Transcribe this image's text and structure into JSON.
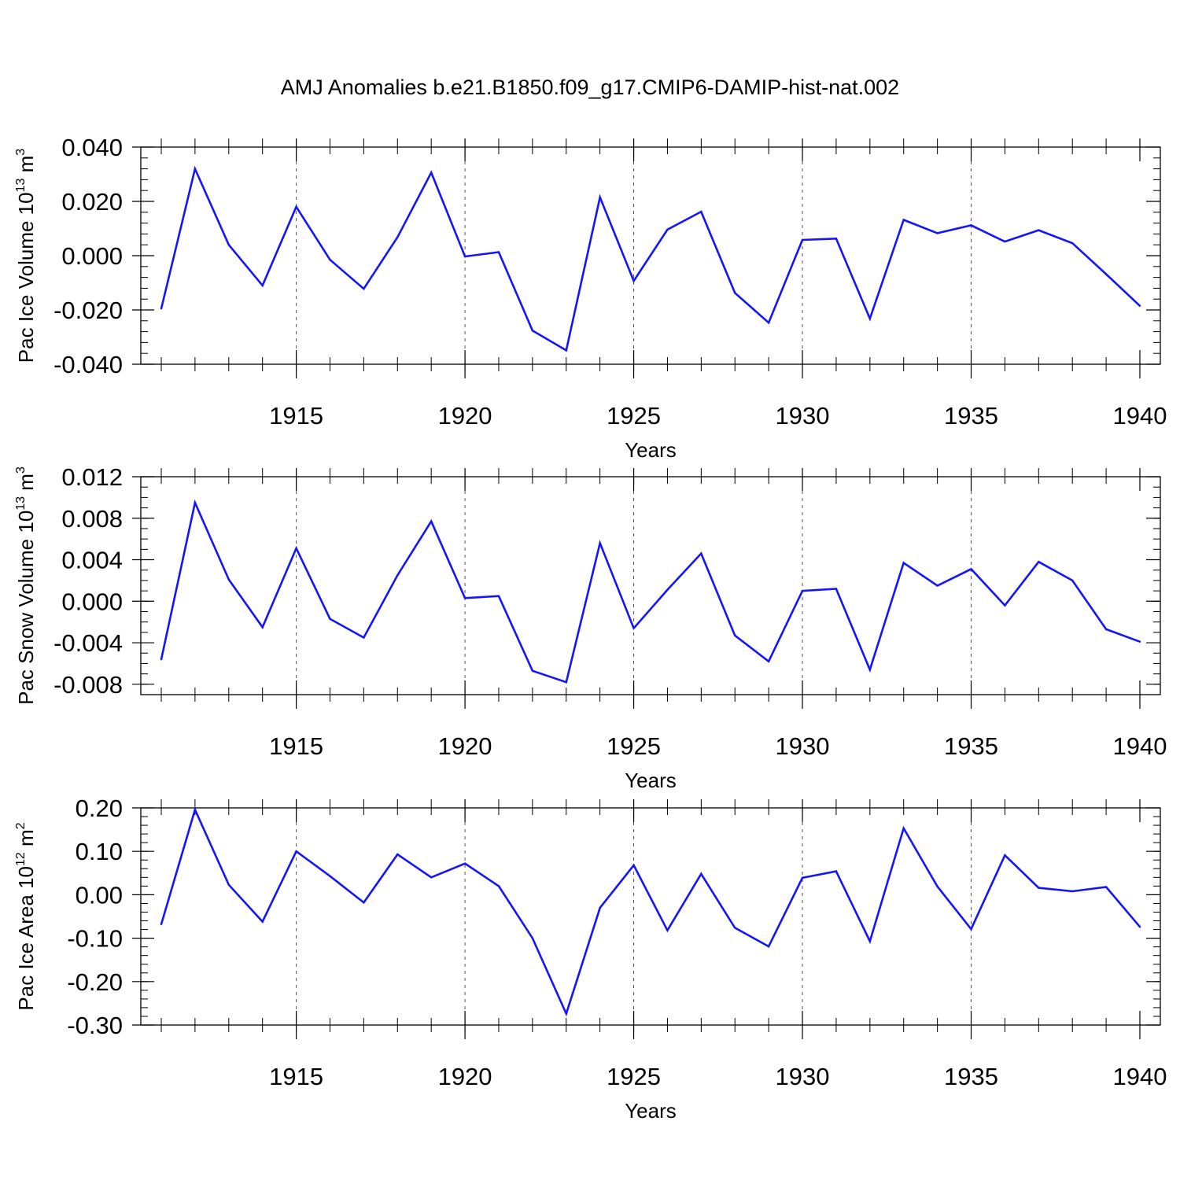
{
  "title": "AMJ Anomalies b.e21.B1850.f09_g17.CMIP6-DAMIP-hist-nat.002",
  "colors": {
    "line": "#1414ff",
    "axis": "#000000",
    "grid": "#555555"
  },
  "chart_data": [
    {
      "type": "line",
      "panel": "ice-volume",
      "xlabel": "Years",
      "ylabel": {
        "base": "Pac Ice Volume 10",
        "exp1": "13",
        "unit": " m",
        "exp2": "3"
      },
      "xlim": [
        1911,
        1940
      ],
      "ylim": [
        -0.04,
        0.04
      ],
      "xticks": [
        1915,
        1920,
        1925,
        1930,
        1935,
        1940
      ],
      "xtick_labels": [
        "1915",
        "1920",
        "1925",
        "1930",
        "1935",
        "1940"
      ],
      "yticks": [
        -0.04,
        -0.02,
        0.0,
        0.02,
        0.04
      ],
      "ytick_labels": [
        "-0.040",
        "-0.020",
        "0.000",
        "0.020",
        "0.040"
      ],
      "x_minor_step": 1,
      "y_minor_step": 0.004,
      "grid": "dashed-vertical",
      "series": [
        {
          "name": "Pac Ice Volume",
          "x": [
            1911,
            1912,
            1913,
            1914,
            1915,
            1916,
            1917,
            1918,
            1919,
            1920,
            1921,
            1922,
            1923,
            1924,
            1925,
            1926,
            1927,
            1928,
            1929,
            1930,
            1931,
            1932,
            1933,
            1934,
            1935,
            1936,
            1937,
            1938,
            1939,
            1940
          ],
          "values": [
            -0.0195,
            0.032,
            0.004,
            -0.011,
            0.018,
            -0.0015,
            -0.0122,
            0.0068,
            0.0306,
            -0.0003,
            0.0013,
            -0.0276,
            -0.0349,
            0.0215,
            -0.0093,
            0.0096,
            0.0162,
            -0.0137,
            -0.0247,
            0.0058,
            0.0063,
            -0.0232,
            0.0132,
            0.0083,
            0.0112,
            0.0052,
            0.0094,
            0.0046,
            -0.0068,
            -0.0185
          ]
        }
      ]
    },
    {
      "type": "line",
      "panel": "snow-volume",
      "xlabel": "Years",
      "ylabel": {
        "base": "Pac Snow Volume 10",
        "exp1": "13",
        "unit": " m",
        "exp2": "3"
      },
      "xlim": [
        1911,
        1940
      ],
      "ylim": [
        -0.009,
        0.012
      ],
      "xticks": [
        1915,
        1920,
        1925,
        1930,
        1935,
        1940
      ],
      "xtick_labels": [
        "1915",
        "1920",
        "1925",
        "1930",
        "1935",
        "1940"
      ],
      "yticks": [
        -0.008,
        -0.004,
        0.0,
        0.004,
        0.008,
        0.012
      ],
      "ytick_labels": [
        "-0.008",
        "-0.004",
        "0.000",
        "0.004",
        "0.008",
        "0.012"
      ],
      "x_minor_step": 1,
      "y_minor_step": 0.001,
      "grid": "dashed-vertical",
      "series": [
        {
          "name": "Pac Snow Volume",
          "x": [
            1911,
            1912,
            1913,
            1914,
            1915,
            1916,
            1917,
            1918,
            1919,
            1920,
            1921,
            1922,
            1923,
            1924,
            1925,
            1926,
            1927,
            1928,
            1929,
            1930,
            1931,
            1932,
            1933,
            1934,
            1935,
            1936,
            1937,
            1938,
            1939,
            1940
          ],
          "values": [
            -0.0056,
            0.0095,
            0.0021,
            -0.0025,
            0.0051,
            -0.0017,
            -0.0035,
            0.0025,
            0.0077,
            0.0003,
            0.0005,
            -0.0067,
            -0.0078,
            0.0056,
            -0.0026,
            0.0011,
            0.0046,
            -0.0033,
            -0.0058,
            0.001,
            0.0012,
            -0.0066,
            0.0037,
            0.0015,
            0.0031,
            -0.0004,
            0.0038,
            0.002,
            -0.0027,
            -0.0039
          ]
        }
      ]
    },
    {
      "type": "line",
      "panel": "ice-area",
      "xlabel": "Years",
      "ylabel": {
        "base": "Pac Ice Area 10",
        "exp1": "12",
        "unit": " m",
        "exp2": "2"
      },
      "xlim": [
        1911,
        1940
      ],
      "ylim": [
        -0.3,
        0.2
      ],
      "xticks": [
        1915,
        1920,
        1925,
        1930,
        1935,
        1940
      ],
      "xtick_labels": [
        "1915",
        "1920",
        "1925",
        "1930",
        "1935",
        "1940"
      ],
      "yticks": [
        -0.3,
        -0.2,
        -0.1,
        0.0,
        0.1,
        0.2
      ],
      "ytick_labels": [
        "-0.30",
        "-0.20",
        "-0.10",
        "0.00",
        "0.10",
        "0.20"
      ],
      "x_minor_step": 1,
      "y_minor_step": 0.02,
      "grid": "dashed-vertical",
      "series": [
        {
          "name": "Pac Ice Area",
          "x": [
            1911,
            1912,
            1913,
            1914,
            1915,
            1916,
            1917,
            1918,
            1919,
            1920,
            1921,
            1922,
            1923,
            1924,
            1925,
            1926,
            1927,
            1928,
            1929,
            1930,
            1931,
            1932,
            1933,
            1934,
            1935,
            1936,
            1937,
            1938,
            1939,
            1940
          ],
          "values": [
            -0.068,
            0.196,
            0.023,
            -0.062,
            0.1,
            0.043,
            -0.018,
            0.093,
            0.04,
            0.072,
            0.02,
            -0.1,
            -0.274,
            -0.03,
            0.068,
            -0.082,
            0.048,
            -0.076,
            -0.119,
            0.039,
            0.054,
            -0.107,
            0.153,
            0.019,
            -0.079,
            0.091,
            0.016,
            0.008,
            0.018,
            -0.074
          ]
        }
      ]
    }
  ]
}
